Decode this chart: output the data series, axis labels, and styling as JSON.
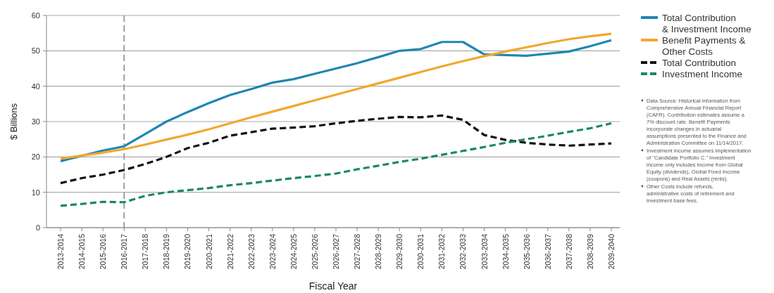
{
  "chart_data": {
    "type": "line",
    "xlabel": "Fiscal Year",
    "ylabel": "$ Billions",
    "categories": [
      "2013-2014",
      "2014-2015",
      "2015-2016",
      "2016-2017",
      "2017-2018",
      "2018-2019",
      "2019-2020",
      "2020-2021",
      "2021-2022",
      "2022-2023",
      "2023-2024",
      "2024-2025",
      "2025-2026",
      "2026-2027",
      "2027-2028",
      "2028-2029",
      "2029-2030",
      "2030-2031",
      "2031-2032",
      "2032-2033",
      "2033-2034",
      "2034-2035",
      "2035-2036",
      "2036-2037",
      "2037-2038",
      "2038-2039",
      "2039-2040"
    ],
    "series": [
      {
        "name": "Total Contribution & Investment Income",
        "color": "#1f86b4",
        "line_style": "solid",
        "values": [
          18.8,
          20.3,
          21.8,
          23,
          26.5,
          30,
          32.7,
          35.2,
          37.5,
          39.2,
          41,
          42,
          43.5,
          45,
          46.5,
          48.2,
          50,
          50.5,
          52.5,
          52.5,
          49,
          48.8,
          48.6,
          49.2,
          49.8,
          51.3,
          53
        ]
      },
      {
        "name": "Benefit Payments & Other Costs",
        "color": "#f2a72c",
        "line_style": "solid",
        "values": [
          19.5,
          20.4,
          21.2,
          22.2,
          23.5,
          24.9,
          26.3,
          27.8,
          29.5,
          31.2,
          32.8,
          34.4,
          36,
          37.6,
          39.2,
          40.8,
          42.4,
          44,
          45.6,
          47.1,
          48.5,
          49.8,
          51,
          52.2,
          53.3,
          54.1,
          54.8
        ]
      },
      {
        "name": "Total Contribution",
        "color": "#111111",
        "line_style": "dashed",
        "values": [
          12.6,
          14,
          15,
          16.3,
          18,
          20,
          22.5,
          24,
          26,
          27,
          28,
          28.3,
          28.7,
          29.5,
          30.2,
          30.8,
          31.3,
          31.2,
          31.7,
          30.5,
          26.2,
          24.8,
          24,
          23.5,
          23.2,
          23.5,
          23.8
        ]
      },
      {
        "name": "Investment Income",
        "color": "#1a8a5a",
        "line_style": "dashed",
        "values": [
          6.2,
          6.7,
          7.3,
          7.2,
          9,
          10,
          10.6,
          11.2,
          12,
          12.6,
          13.3,
          14,
          14.6,
          15.3,
          16.5,
          17.5,
          18.6,
          19.5,
          20.6,
          21.7,
          22.8,
          24,
          25,
          26,
          27.1,
          28.1,
          29.5
        ]
      }
    ],
    "ylim": [
      0,
      60
    ],
    "yticks": [
      0,
      10,
      20,
      30,
      40,
      50,
      60
    ],
    "grid": "y",
    "legend": "right",
    "marker": "none",
    "ref_lines": [
      {
        "axis": "x",
        "value": "2016-2017",
        "color": "#888888",
        "line_style": "dashed"
      }
    ],
    "annotations": [
      "Data Source: Historical information from Comprehensive Annual Financial Report (CAFR). Contribution estimates assume a 7% discount rate. Benefit Payments incorporate changes in actuarial assumptions presented to the Finance and Administration Committee on 11/14/2017.",
      "Investment Income assumes implementation of \"Candidate Portfolio C.\" Investment income only includes income from Global Equity (dividends), Global Fixed Income (coupons) and Real Assets (rents).",
      "Other Costs include refunds, administrative costs of retirement and investment base fees."
    ]
  }
}
